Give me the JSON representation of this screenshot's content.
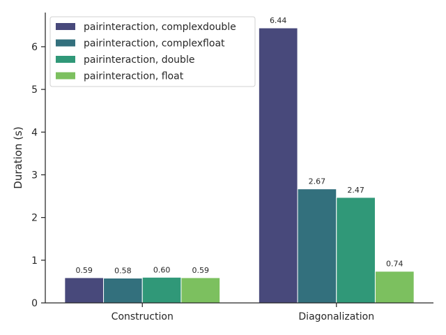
{
  "chart_data": {
    "type": "bar",
    "title": "",
    "xlabel": "",
    "ylabel": "Duration (s)",
    "ylim": [
      0,
      6.8
    ],
    "yticks": [
      0,
      1,
      2,
      3,
      4,
      5,
      6
    ],
    "categories": [
      "Construction",
      "Diagonalization"
    ],
    "series": [
      {
        "name": "pairinteraction, complexdouble",
        "values": [
          0.59,
          6.44
        ],
        "labels": [
          "0.59",
          "6.44"
        ],
        "color": "#48497b"
      },
      {
        "name": "pairinteraction, complexfloat",
        "values": [
          0.58,
          2.67
        ],
        "labels": [
          "0.58",
          "2.67"
        ],
        "color": "#33707d"
      },
      {
        "name": "pairinteraction, double",
        "values": [
          0.6,
          2.47
        ],
        "labels": [
          "0.60",
          "2.47"
        ],
        "color": "#309878"
      },
      {
        "name": "pairinteraction, float",
        "values": [
          0.59,
          0.74
        ],
        "labels": [
          "0.59",
          "0.74"
        ],
        "color": "#7cc05f"
      }
    ],
    "legend_position": "top-left",
    "grid": false
  }
}
